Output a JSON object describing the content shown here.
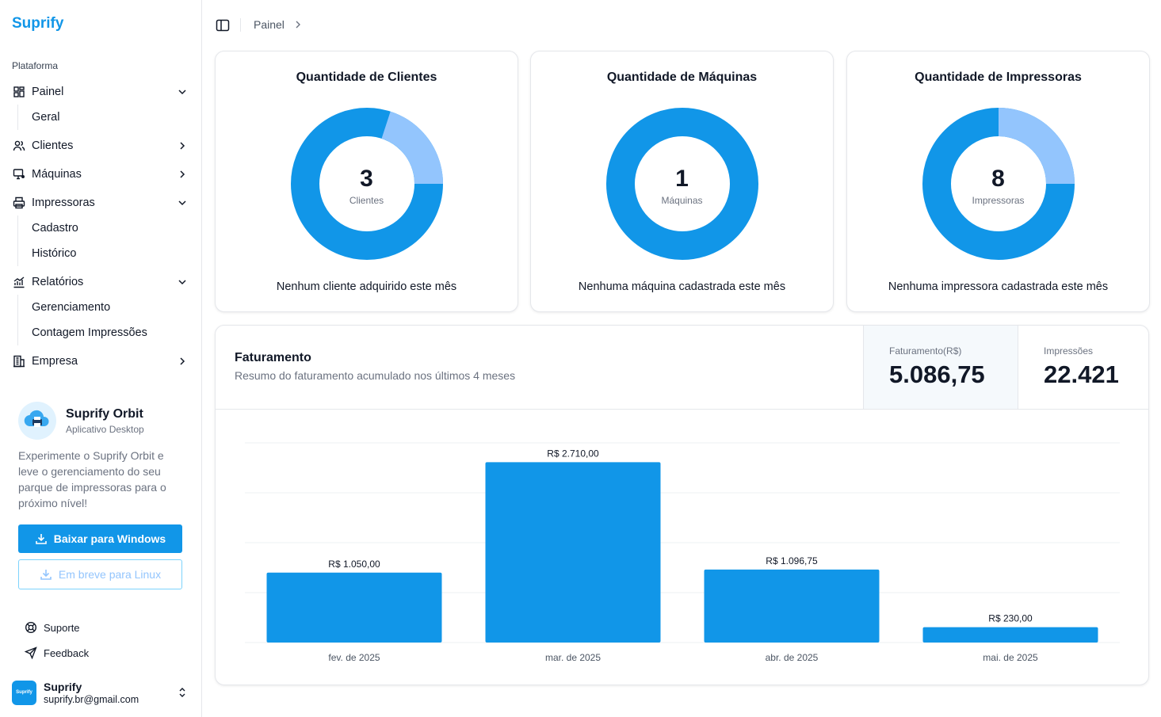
{
  "brand": "Suprify",
  "sidebar": {
    "section_label": "Plataforma",
    "painel": {
      "label": "Painel",
      "sub": [
        "Geral"
      ]
    },
    "clientes": {
      "label": "Clientes"
    },
    "maquinas": {
      "label": "Máquinas"
    },
    "impressoras": {
      "label": "Impressoras",
      "sub": [
        "Cadastro",
        "Histórico"
      ]
    },
    "relatorios": {
      "label": "Relatórios",
      "sub": [
        "Gerenciamento",
        "Contagem Impressões"
      ]
    },
    "empresa": {
      "label": "Empresa"
    }
  },
  "promo": {
    "title": "Suprify Orbit",
    "subtitle": "Aplicativo Desktop",
    "text": "Experimente o Suprify Orbit e leve o gerenciamento do seu parque de impressoras para o próximo nível!",
    "download_windows": "Baixar para Windows",
    "coming_linux": "Em breve para Linux"
  },
  "footer_links": {
    "support": "Suporte",
    "feedback": "Feedback"
  },
  "user": {
    "avatar_text": "Suprify",
    "name": "Suprify",
    "email": "suprify.br@gmail.com"
  },
  "breadcrumb": {
    "current": "Painel"
  },
  "stats": {
    "clientes": {
      "title": "Quantidade de Clientes",
      "value": "3",
      "unit": "Clientes",
      "footer": "Nenhum cliente adquirido este mês",
      "share": 0.2
    },
    "maquinas": {
      "title": "Quantidade de Máquinas",
      "value": "1",
      "unit": "Máquinas",
      "footer": "Nenhuma máquina cadastrada este mês",
      "share": 0
    },
    "impressoras": {
      "title": "Quantidade de Impressoras",
      "value": "8",
      "unit": "Impressoras",
      "footer": "Nenhuma impressora cadastrada este mês",
      "share": 0.25
    }
  },
  "colors": {
    "primary": "#1196e8",
    "light": "#93c5fd"
  },
  "revenue": {
    "title": "Faturamento",
    "subtitle": "Resumo do faturamento acumulado nos últimos 4 meses",
    "kpi_revenue_label": "Faturamento(R$)",
    "kpi_revenue_value": "5.086,75",
    "kpi_prints_label": "Impressões",
    "kpi_prints_value": "22.421"
  },
  "chart_data": {
    "type": "bar",
    "categories": [
      "fev. de 2025",
      "mar. de 2025",
      "abr. de 2025",
      "mai. de 2025"
    ],
    "values": [
      1050.0,
      2710.0,
      1096.75,
      230.0
    ],
    "data_labels": [
      "R$ 1.050,00",
      "R$ 2.710,00",
      "R$ 1.096,75",
      "R$ 230,00"
    ],
    "ylim": [
      0,
      3000
    ],
    "grid": true,
    "color": "#1196e8"
  }
}
